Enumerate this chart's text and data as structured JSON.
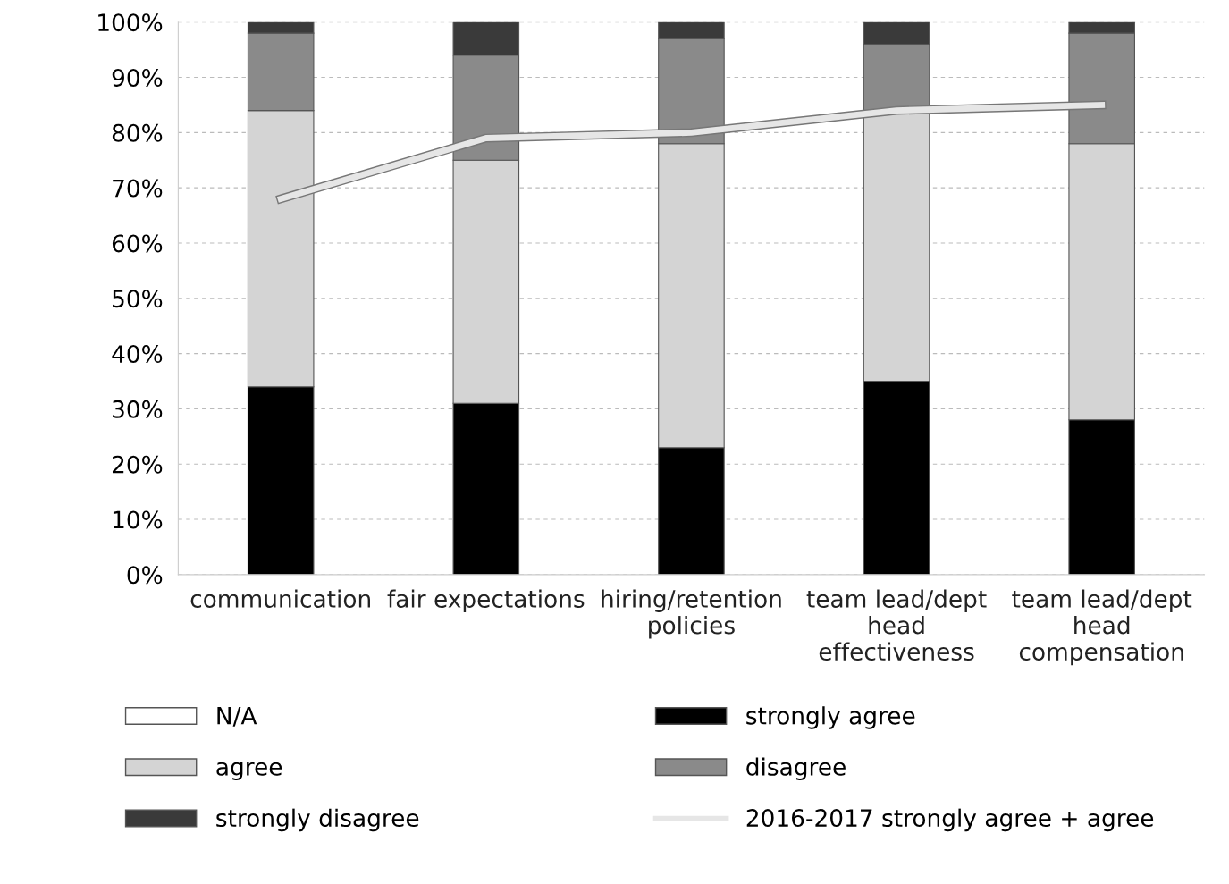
{
  "chart_data": {
    "type": "bar",
    "stacked": true,
    "categories": [
      "communication",
      "fair expectations",
      "hiring/retention\npolicies",
      "team lead/dept\nhead\neffectiveness",
      "team lead/dept\nhead\ncompensation"
    ],
    "series": [
      {
        "name": "N/A",
        "color": "#ffffff",
        "values": [
          0,
          0,
          0,
          0,
          0
        ]
      },
      {
        "name": "strongly agree",
        "color": "#000000",
        "values": [
          34,
          31,
          23,
          35,
          28
        ]
      },
      {
        "name": "agree",
        "color": "#d4d4d4",
        "values": [
          50,
          44,
          55,
          49,
          50
        ]
      },
      {
        "name": "disagree",
        "color": "#8a8a8a",
        "values": [
          14,
          19,
          19,
          12,
          20
        ]
      },
      {
        "name": "strongly disagree",
        "color": "#3a3a3a",
        "values": [
          2,
          6,
          3,
          4,
          2
        ]
      },
      {
        "name": "2016-2017 strongly agree + agree",
        "type": "line",
        "color": "#e6e6e6",
        "values": [
          68,
          79,
          80,
          84,
          85
        ]
      }
    ],
    "ylim": [
      0,
      100
    ],
    "yticks": [
      {
        "value": 0,
        "label": "0%"
      },
      {
        "value": 10,
        "label": "10%"
      },
      {
        "value": 20,
        "label": "20%"
      },
      {
        "value": 30,
        "label": "30%"
      },
      {
        "value": 40,
        "label": "40%"
      },
      {
        "value": 50,
        "label": "50%"
      },
      {
        "value": 60,
        "label": "60%"
      },
      {
        "value": 70,
        "label": "70%"
      },
      {
        "value": 80,
        "label": "80%"
      },
      {
        "value": 90,
        "label": "90%"
      },
      {
        "value": 100,
        "label": "100%"
      }
    ],
    "grid": "y",
    "legend": "bottom"
  }
}
